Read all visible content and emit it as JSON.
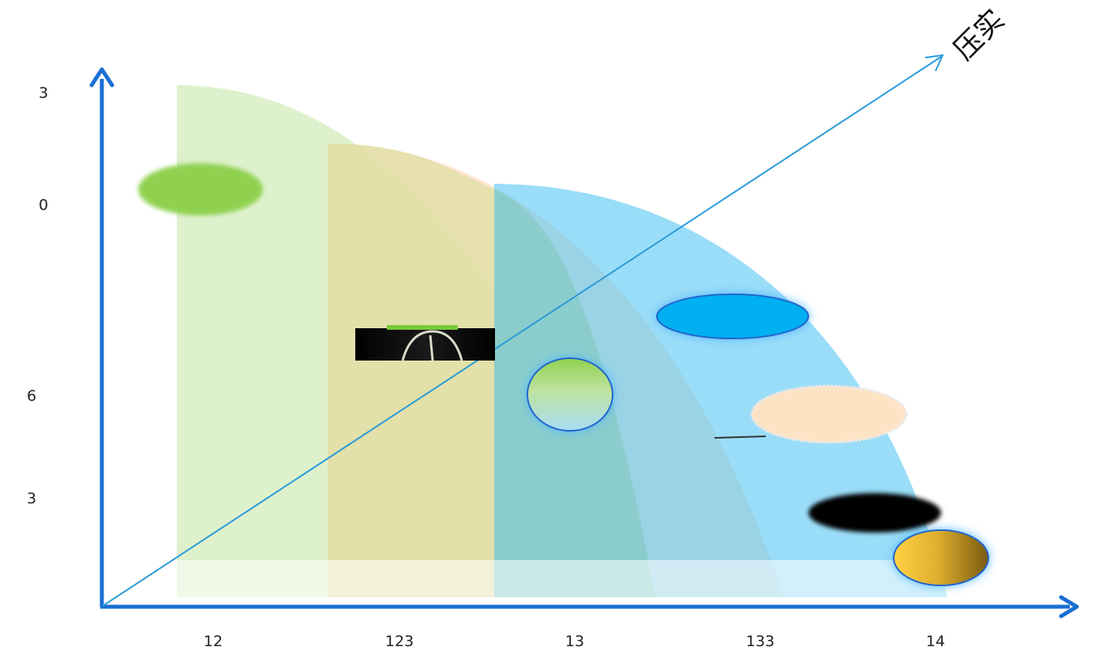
{
  "diagram": {
    "diagonal_arrow_label": "压实",
    "y_axis_labels": [
      "3",
      "0",
      "6",
      "3"
    ],
    "x_axis_labels": [
      "12",
      "123",
      "13",
      "133",
      "14"
    ],
    "colors": {
      "axis": "#1a6fd4",
      "diagonal_arrow": "#2a9bd8",
      "region_green": "#cfe9b5",
      "region_peach": "#fcd9b8",
      "region_olive": "#d4d98e",
      "region_blue": "#5cc6f2",
      "region_teal": "#7ec9c2",
      "ellipse_green": "#8fd14f",
      "ellipse_blue": "#00b0f0",
      "ellipse_peach": "#fde4c8",
      "ellipse_gold": "#f4c430",
      "ellipse_black": "#000000",
      "circle_outline": "#2266cc"
    },
    "shapes": [
      "green-ellipse",
      "dark-bridge-image",
      "green-blue-circle",
      "blue-ellipse",
      "peach-ellipse",
      "black-ellipse",
      "gold-ellipse"
    ]
  }
}
